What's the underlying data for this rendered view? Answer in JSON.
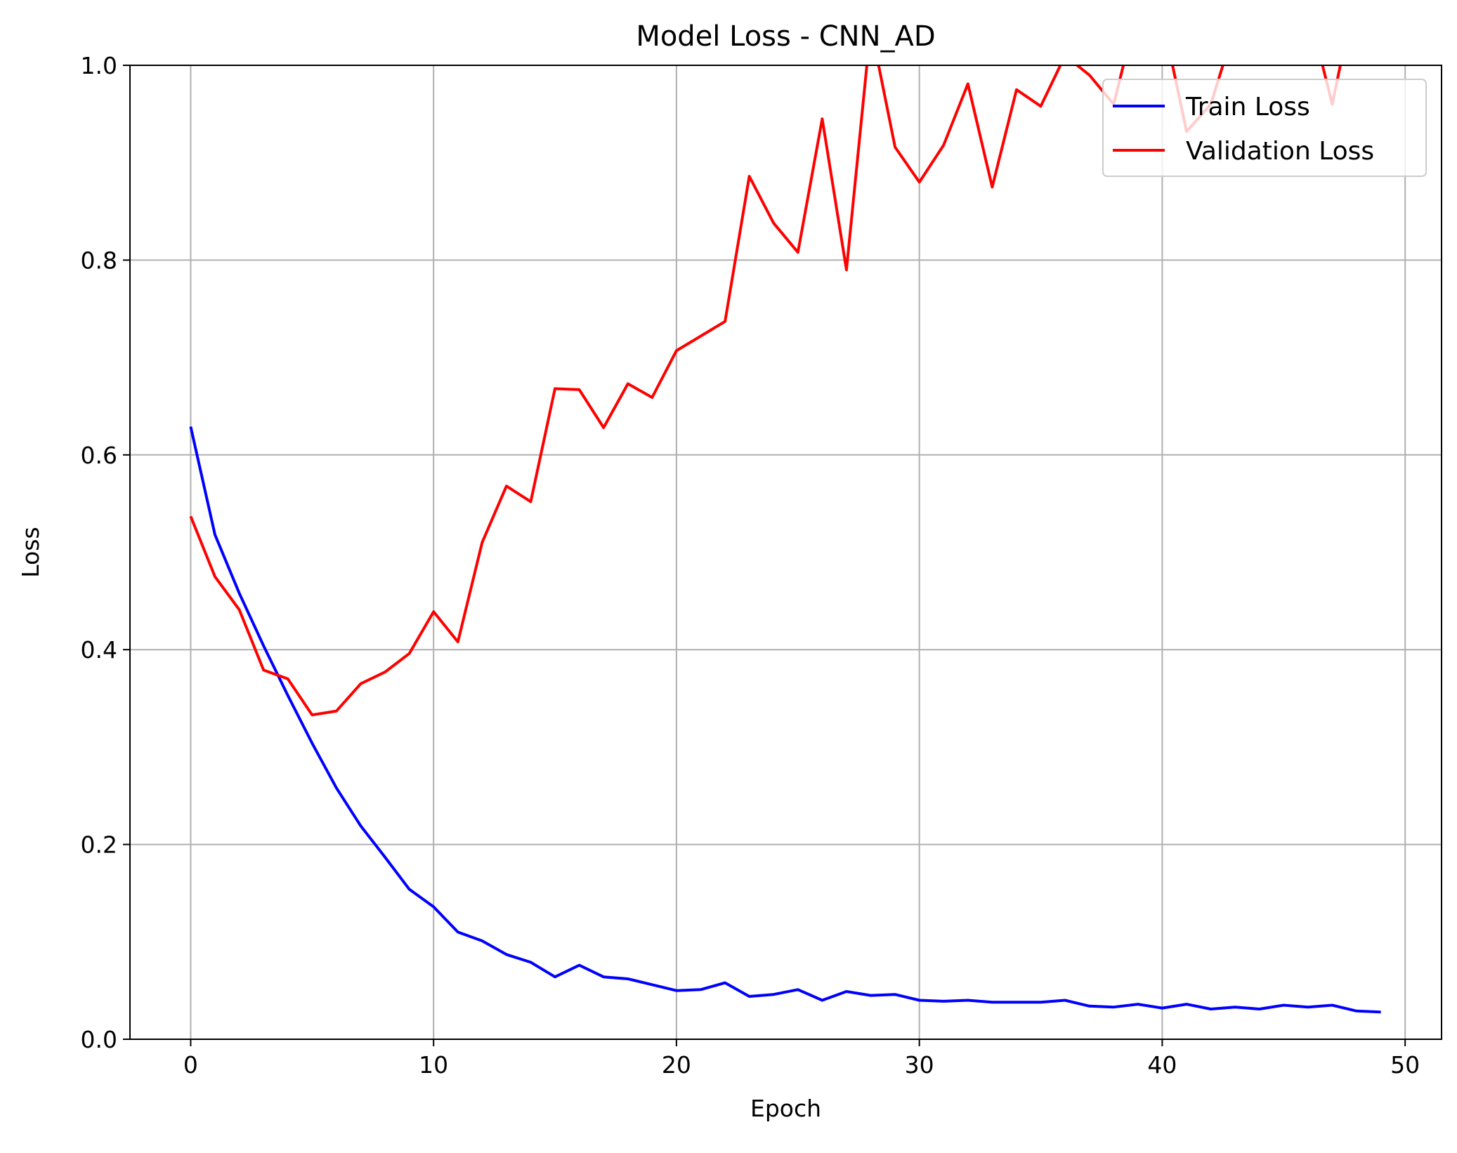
{
  "chart_data": {
    "type": "line",
    "title": "Model Loss - CNN_AD",
    "xlabel": "Epoch",
    "ylabel": "Loss",
    "xlim": [
      -2.5,
      51.5
    ],
    "ylim": [
      0.0,
      1.0
    ],
    "x_ticks": [
      0,
      10,
      20,
      30,
      40,
      50
    ],
    "y_ticks": [
      0.0,
      0.2,
      0.4,
      0.6,
      0.8,
      1.0
    ],
    "x_tick_labels": [
      "0",
      "10",
      "20",
      "30",
      "40",
      "50"
    ],
    "y_tick_labels": [
      "0.0",
      "0.2",
      "0.4",
      "0.6",
      "0.8",
      "1.0"
    ],
    "grid": true,
    "legend_position": "top-right",
    "x": [
      0,
      1,
      2,
      3,
      4,
      5,
      6,
      7,
      8,
      9,
      10,
      11,
      12,
      13,
      14,
      15,
      16,
      17,
      18,
      19,
      20,
      21,
      22,
      23,
      24,
      25,
      26,
      27,
      28,
      29,
      30,
      31,
      32,
      33,
      34,
      35,
      36,
      37,
      38,
      39,
      40,
      41,
      42,
      43,
      44,
      45,
      46,
      47,
      48,
      49
    ],
    "series": [
      {
        "name": "Train Loss",
        "color": "#0000ff",
        "values": [
          0.629,
          0.518,
          0.458,
          0.404,
          0.353,
          0.304,
          0.258,
          0.219,
          0.187,
          0.154,
          0.136,
          0.11,
          0.101,
          0.087,
          0.079,
          0.064,
          0.076,
          0.064,
          0.062,
          0.056,
          0.05,
          0.051,
          0.058,
          0.044,
          0.046,
          0.051,
          0.04,
          0.049,
          0.045,
          0.046,
          0.04,
          0.039,
          0.04,
          0.038,
          0.038,
          0.038,
          0.04,
          0.034,
          0.033,
          0.036,
          0.032,
          0.036,
          0.031,
          0.033,
          0.031,
          0.035,
          0.033,
          0.035,
          0.029,
          0.028
        ]
      },
      {
        "name": "Validation Loss",
        "color": "#ff0000",
        "values": [
          0.537,
          0.475,
          0.441,
          0.379,
          0.37,
          0.333,
          0.337,
          0.365,
          0.377,
          0.396,
          0.439,
          0.408,
          0.51,
          0.568,
          0.552,
          0.668,
          0.667,
          0.628,
          0.673,
          0.659,
          0.707,
          0.722,
          0.737,
          0.886,
          0.838,
          0.808,
          0.945,
          0.79,
          1.04,
          0.916,
          0.88,
          0.918,
          0.981,
          0.875,
          0.975,
          0.958,
          1.01,
          0.99,
          0.96,
          1.06,
          1.05,
          0.932,
          0.96,
          1.04,
          1.06,
          1.05,
          1.06,
          0.96,
          1.08,
          1.09
        ]
      }
    ]
  }
}
